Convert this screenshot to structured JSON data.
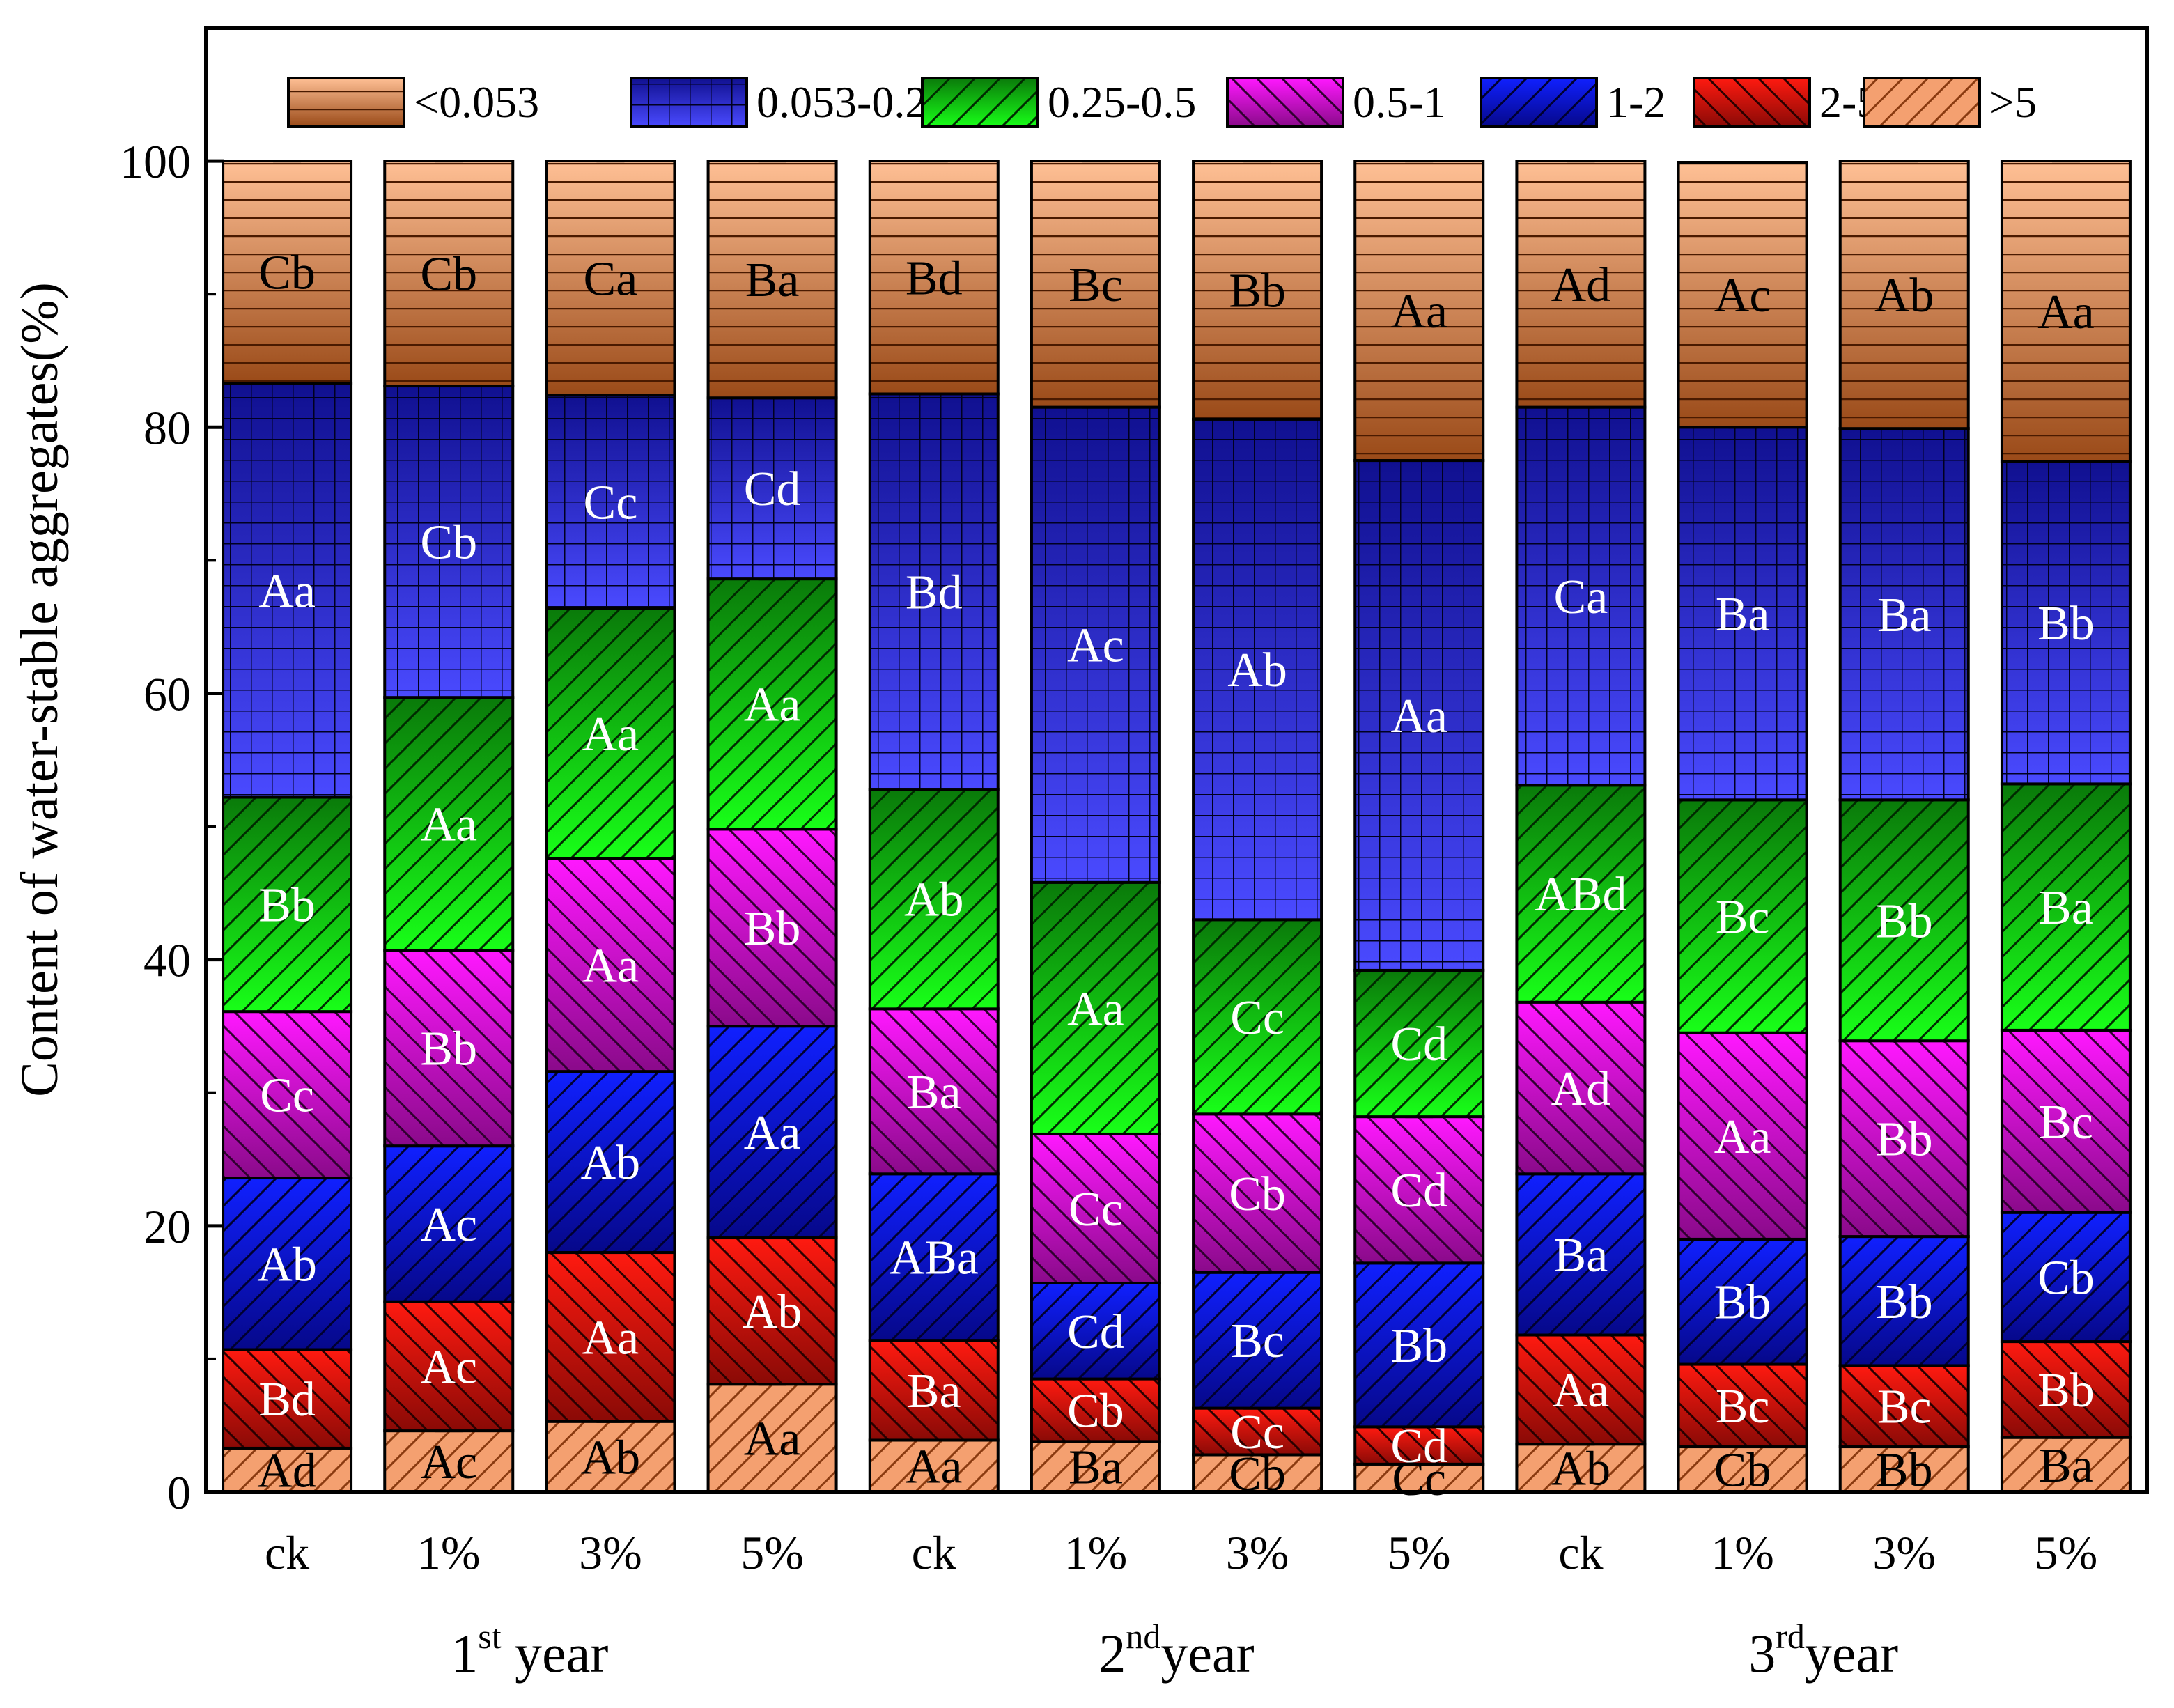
{
  "chart_data": {
    "type": "bar",
    "stacked": true,
    "ylabel": "Content of water-stable aggregates(%)",
    "ylim": [
      0,
      110
    ],
    "yticks": [
      0,
      20,
      40,
      60,
      80,
      100
    ],
    "grid": false,
    "legend_position": "top",
    "categories": [
      "ck",
      "1%",
      "3%",
      "5%",
      "ck",
      "1%",
      "3%",
      "5%",
      "ck",
      "1%",
      "3%",
      "5%"
    ],
    "groups": [
      {
        "pre": "1",
        "sup": "st",
        "post": " year",
        "start": 0,
        "end": 3
      },
      {
        "pre": "2",
        "sup": "nd",
        "post": "year",
        "start": 4,
        "end": 7
      },
      {
        "pre": "3",
        "sup": "rd",
        "post": "year",
        "start": 8,
        "end": 11
      }
    ],
    "series": [
      {
        "name": ">5",
        "color": "#f4a070",
        "pattern": "diag-up-orange",
        "values": [
          3.3,
          4.6,
          5.3,
          8.1,
          3.9,
          3.8,
          2.8,
          2.1,
          3.6,
          3.4,
          3.4,
          4.1
        ],
        "labels": [
          "Ad",
          "Ac",
          "Ab",
          "Aa",
          "Aa",
          "Ba",
          "Cb",
          "Cc",
          "Ab",
          "Cb",
          "Bb",
          "Ba"
        ]
      },
      {
        "name": "2-5",
        "color": "#e8120c",
        "pattern": "diag-down-red",
        "values": [
          7.4,
          9.7,
          12.7,
          11.0,
          7.5,
          4.7,
          3.5,
          2.8,
          8.2,
          6.2,
          6.1,
          7.2
        ],
        "labels": [
          "Bd",
          "Ac",
          "Aa",
          "Ab",
          "Ba",
          "Cb",
          "Cc",
          "Cd",
          "Aa",
          "Bc",
          "Bc",
          "Bb"
        ]
      },
      {
        "name": "1-2",
        "color": "#0a10e6",
        "pattern": "diag-up-blue",
        "values": [
          12.9,
          11.7,
          13.6,
          15.9,
          12.5,
          7.2,
          10.2,
          12.3,
          12.1,
          9.4,
          9.7,
          9.7
        ],
        "labels": [
          "Ab",
          "Ac",
          "Ab",
          "Aa",
          "ABa",
          "Cd",
          "Bc",
          "Bb",
          "Ba",
          "Bb",
          "Bb",
          "Cb"
        ]
      },
      {
        "name": "0.5-1",
        "color": "#e012e0",
        "pattern": "diag-down-magenta",
        "values": [
          12.5,
          14.7,
          16.0,
          14.8,
          12.4,
          11.2,
          11.9,
          11.0,
          12.9,
          15.5,
          14.7,
          13.7
        ],
        "labels": [
          "Cc",
          "Bb",
          "Aa",
          "Bb",
          "Ba",
          "Cc",
          "Cb",
          "Cd",
          "Ad",
          "Aa",
          "Bb",
          "Bc"
        ]
      },
      {
        "name": "0.25-0.5",
        "color": "#12e812",
        "pattern": "diag-up-green",
        "values": [
          16.1,
          19.0,
          18.8,
          18.8,
          16.5,
          18.9,
          14.6,
          11.0,
          16.3,
          17.5,
          18.1,
          18.5
        ],
        "labels": [
          "Bb",
          "Aa",
          "Aa",
          "Aa",
          "Ab",
          "Aa",
          "Cc",
          "Cd",
          "ABd",
          "Bc",
          "Bb",
          "Ba"
        ]
      },
      {
        "name": "0.053-0.25",
        "color": "#3a3ae8",
        "pattern": "grid-blue",
        "values": [
          31.1,
          23.4,
          16.0,
          13.6,
          29.7,
          35.7,
          37.6,
          38.3,
          28.4,
          28.0,
          27.9,
          24.2
        ],
        "labels": [
          "Aa",
          "Cb",
          "Cc",
          "Cd",
          "Bd",
          "Ac",
          "Ab",
          "Aa",
          "Ca",
          "Ba",
          "Ba",
          "Bb"
        ]
      },
      {
        "name": "<0.053",
        "color": "#f4b485",
        "pattern": "hlines-brown",
        "values": [
          16.7,
          16.9,
          17.6,
          17.8,
          17.5,
          18.5,
          19.4,
          22.5,
          18.5,
          19.9,
          20.1,
          22.6
        ],
        "labels": [
          "Cb",
          "Cb",
          "Ca",
          "Ba",
          "Bd",
          "Bc",
          "Bb",
          "Aa",
          "Ad",
          "Ac",
          "Ab",
          "Aa"
        ]
      }
    ]
  }
}
